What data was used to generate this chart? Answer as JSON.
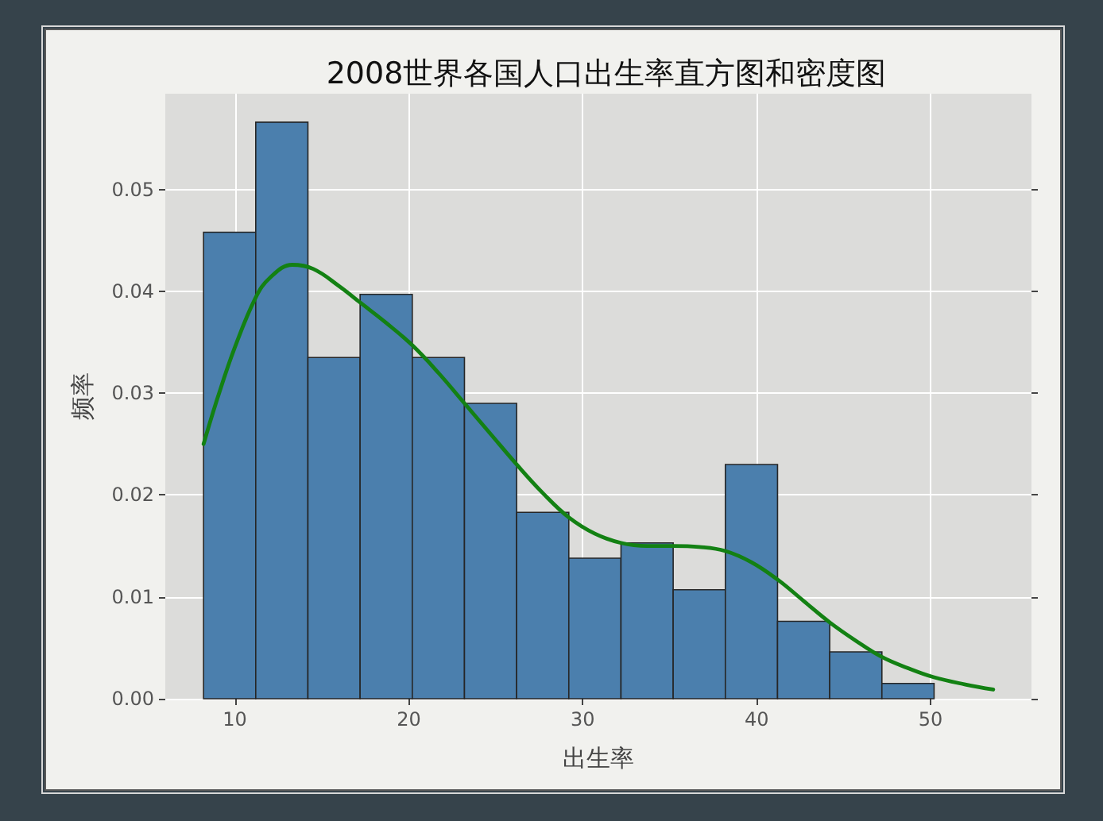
{
  "chart_data": {
    "type": "histogram",
    "title": "2008世界各国人口出生率直方图和密度图",
    "xlabel": "出生率",
    "ylabel": "频率",
    "bins": [
      8.2,
      11.2,
      14.2,
      17.2,
      20.2,
      23.2,
      26.2,
      29.2,
      32.2,
      35.2,
      38.2,
      41.2,
      44.2,
      47.2,
      50.2
    ],
    "series": [
      {
        "color": "#4b7fad",
        "values": [
          0.0458,
          0.0566,
          0.0335,
          0.0397,
          0.0335,
          0.029,
          0.0183,
          0.0138,
          0.0153,
          0.0107,
          0.023,
          0.0076,
          0.0046,
          0.0015
        ]
      },
      {
        "type": "line",
        "color": "#138113",
        "x": [
          8.2,
          9,
          10,
          11.2,
          12,
          13.3,
          14.5,
          16,
          17.2,
          18.7,
          20.2,
          21.7,
          23.2,
          24.7,
          26.2,
          27.7,
          29.2,
          30.7,
          32.2,
          33.7,
          35.2,
          36.7,
          38.2,
          39.7,
          41.2,
          42.7,
          44.2,
          45.7,
          47.2,
          48.7,
          50.2,
          52,
          53.6
        ],
        "values": [
          0.025,
          0.0295,
          0.0345,
          0.0394,
          0.0413,
          0.0426,
          0.0422,
          0.0405,
          0.0389,
          0.0369,
          0.0347,
          0.032,
          0.029,
          0.026,
          0.023,
          0.0202,
          0.0178,
          0.0162,
          0.0153,
          0.015,
          0.015,
          0.0149,
          0.0145,
          0.0134,
          0.0117,
          0.0096,
          0.0075,
          0.0057,
          0.0041,
          0.003,
          0.0021,
          0.0014,
          0.0009
        ]
      }
    ],
    "xlim": [
      6.0,
      55.8
    ],
    "ylim": [
      0,
      0.0594
    ],
    "xticks": [
      10,
      20,
      30,
      40,
      50
    ],
    "yticks": [
      {
        "value": 0,
        "label": "0.00"
      },
      0.01,
      0.02,
      0.03,
      0.04,
      0.05
    ],
    "grid": true
  }
}
